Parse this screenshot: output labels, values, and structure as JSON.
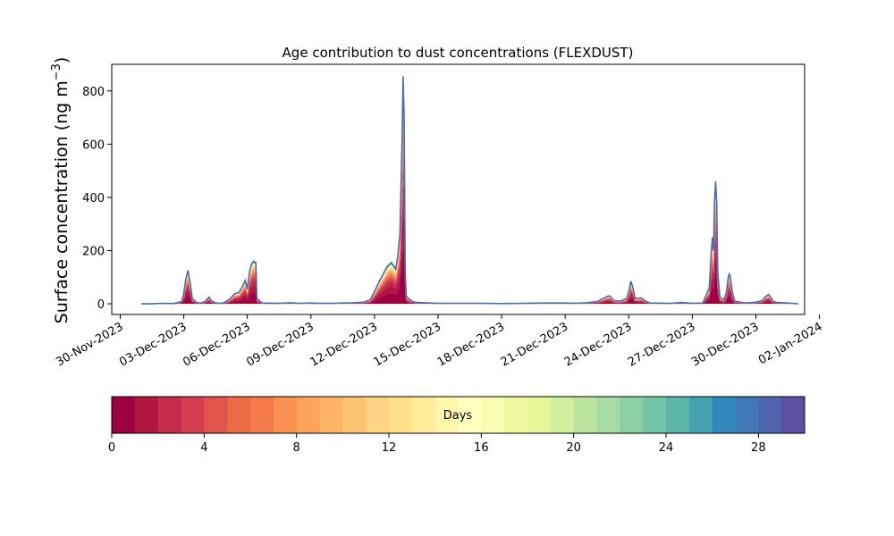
{
  "chart_data": {
    "type": "area",
    "title": "Age contribution to dust concentrations (FLEXDUST)",
    "ylabel_main": "Surface concentration (ng m",
    "ylabel_exp": "−3",
    "ylabel_close": ")",
    "xlabel": "",
    "x_unit": "days since 30-Nov-2023 00:00",
    "xlim": [
      -0.4,
      32.3
    ],
    "ylim": [
      -40,
      900
    ],
    "yticks": [
      0,
      200,
      400,
      600,
      800
    ],
    "xticks": [
      {
        "pos": 0,
        "label": "30-Nov-2023"
      },
      {
        "pos": 3,
        "label": "03-Dec-2023"
      },
      {
        "pos": 6,
        "label": "06-Dec-2023"
      },
      {
        "pos": 9,
        "label": "09-Dec-2023"
      },
      {
        "pos": 12,
        "label": "12-Dec-2023"
      },
      {
        "pos": 15,
        "label": "15-Dec-2023"
      },
      {
        "pos": 18,
        "label": "18-Dec-2023"
      },
      {
        "pos": 21,
        "label": "21-Dec-2023"
      },
      {
        "pos": 24,
        "label": "24-Dec-2023"
      },
      {
        "pos": 27,
        "label": "27-Dec-2023"
      },
      {
        "pos": 30,
        "label": "30-Dec-2023"
      },
      {
        "pos": 33,
        "label": "02-Jan-2024"
      }
    ],
    "total": [
      [
        1.0,
        0
      ],
      [
        1.5,
        0
      ],
      [
        2.0,
        2
      ],
      [
        2.5,
        1
      ],
      [
        2.9,
        8
      ],
      [
        3.0,
        40
      ],
      [
        3.1,
        95
      ],
      [
        3.2,
        125
      ],
      [
        3.3,
        80
      ],
      [
        3.4,
        20
      ],
      [
        3.6,
        5
      ],
      [
        3.8,
        3
      ],
      [
        4.0,
        8
      ],
      [
        4.1,
        18
      ],
      [
        4.2,
        25
      ],
      [
        4.3,
        12
      ],
      [
        4.5,
        3
      ],
      [
        4.8,
        2
      ],
      [
        5.0,
        8
      ],
      [
        5.2,
        20
      ],
      [
        5.4,
        38
      ],
      [
        5.6,
        42
      ],
      [
        5.7,
        55
      ],
      [
        5.8,
        70
      ],
      [
        5.9,
        88
      ],
      [
        6.0,
        55
      ],
      [
        6.1,
        120
      ],
      [
        6.2,
        150
      ],
      [
        6.3,
        160
      ],
      [
        6.4,
        155
      ],
      [
        6.45,
        20
      ],
      [
        6.7,
        3
      ],
      [
        7.5,
        2
      ],
      [
        8.0,
        4
      ],
      [
        8.5,
        2
      ],
      [
        9.0,
        3
      ],
      [
        9.5,
        2
      ],
      [
        10,
        2
      ],
      [
        10.5,
        3
      ],
      [
        11,
        4
      ],
      [
        11.5,
        6
      ],
      [
        11.8,
        15
      ],
      [
        12.0,
        45
      ],
      [
        12.2,
        80
      ],
      [
        12.4,
        110
      ],
      [
        12.6,
        140
      ],
      [
        12.8,
        155
      ],
      [
        13.0,
        130
      ],
      [
        13.1,
        180
      ],
      [
        13.2,
        260
      ],
      [
        13.3,
        600
      ],
      [
        13.35,
        855
      ],
      [
        13.4,
        700
      ],
      [
        13.45,
        120
      ],
      [
        13.5,
        30
      ],
      [
        13.6,
        20
      ],
      [
        13.8,
        8
      ],
      [
        14.0,
        5
      ],
      [
        15,
        2
      ],
      [
        16,
        2
      ],
      [
        17,
        2
      ],
      [
        18,
        1
      ],
      [
        19,
        2
      ],
      [
        20,
        3
      ],
      [
        21,
        3
      ],
      [
        21.5,
        2
      ],
      [
        22,
        4
      ],
      [
        22.5,
        8
      ],
      [
        22.8,
        20
      ],
      [
        23.0,
        28
      ],
      [
        23.1,
        30
      ],
      [
        23.3,
        12
      ],
      [
        23.6,
        10
      ],
      [
        23.9,
        20
      ],
      [
        24.0,
        45
      ],
      [
        24.1,
        85
      ],
      [
        24.2,
        60
      ],
      [
        24.3,
        20
      ],
      [
        24.6,
        22
      ],
      [
        24.8,
        10
      ],
      [
        25,
        3
      ],
      [
        26,
        2
      ],
      [
        26.5,
        5
      ],
      [
        27,
        2
      ],
      [
        27.5,
        3
      ],
      [
        27.8,
        60
      ],
      [
        27.9,
        200
      ],
      [
        27.95,
        250
      ],
      [
        28.0,
        200
      ],
      [
        28.05,
        380
      ],
      [
        28.1,
        460
      ],
      [
        28.15,
        380
      ],
      [
        28.2,
        120
      ],
      [
        28.3,
        25
      ],
      [
        28.5,
        15
      ],
      [
        28.6,
        40
      ],
      [
        28.7,
        100
      ],
      [
        28.75,
        115
      ],
      [
        28.8,
        95
      ],
      [
        28.9,
        40
      ],
      [
        29.0,
        10
      ],
      [
        29.5,
        3
      ],
      [
        30,
        6
      ],
      [
        30.3,
        12
      ],
      [
        30.4,
        22
      ],
      [
        30.5,
        30
      ],
      [
        30.6,
        35
      ],
      [
        30.7,
        25
      ],
      [
        30.8,
        10
      ],
      [
        31,
        5
      ],
      [
        31.5,
        3
      ],
      [
        32.0,
        0
      ]
    ]
  },
  "colorbar": {
    "label": "Days",
    "ticks": [
      0,
      4,
      8,
      12,
      16,
      20,
      24,
      28
    ],
    "range": [
      0,
      30
    ],
    "bins": 30,
    "colors": [
      "#9e0142",
      "#b0173f",
      "#c42a49",
      "#d53e4f",
      "#e0544b",
      "#eb6b45",
      "#f57a4b",
      "#f89151",
      "#fba35b",
      "#fdb466",
      "#fdc474",
      "#fed381",
      "#fee08b",
      "#feec9b",
      "#fff5ab",
      "#ffffbf",
      "#f8fcb0",
      "#eef8a0",
      "#e6f598",
      "#d2ed9c",
      "#bee5a0",
      "#a5dba4",
      "#8bd0a4",
      "#72c6a5",
      "#5bb5a9",
      "#45a2ae",
      "#3288bd",
      "#3f77b7",
      "#4e65ae",
      "#5e4fa2"
    ]
  }
}
